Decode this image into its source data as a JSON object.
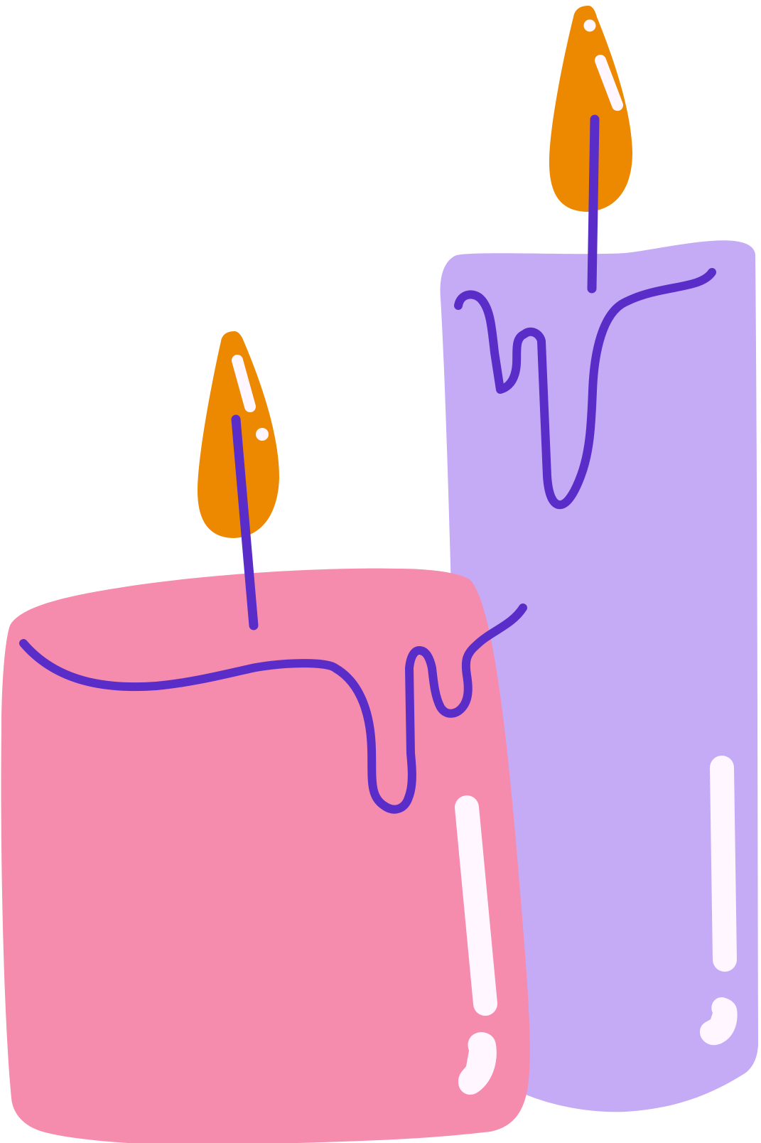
{
  "scene": {
    "subject": "two-candles-illustration",
    "colors": {
      "background": "#ffffff",
      "tall_candle_wax": "#c5abf6",
      "short_candle_wax": "#f58bad",
      "flame": "#ec8900",
      "wick_and_drip": "#5a2dc9",
      "highlight": "#fff6ff"
    },
    "candles": [
      {
        "id": "tall-candle",
        "icon": "candle-icon",
        "lit": true
      },
      {
        "id": "short-candle",
        "icon": "candle-icon",
        "lit": true
      }
    ]
  }
}
